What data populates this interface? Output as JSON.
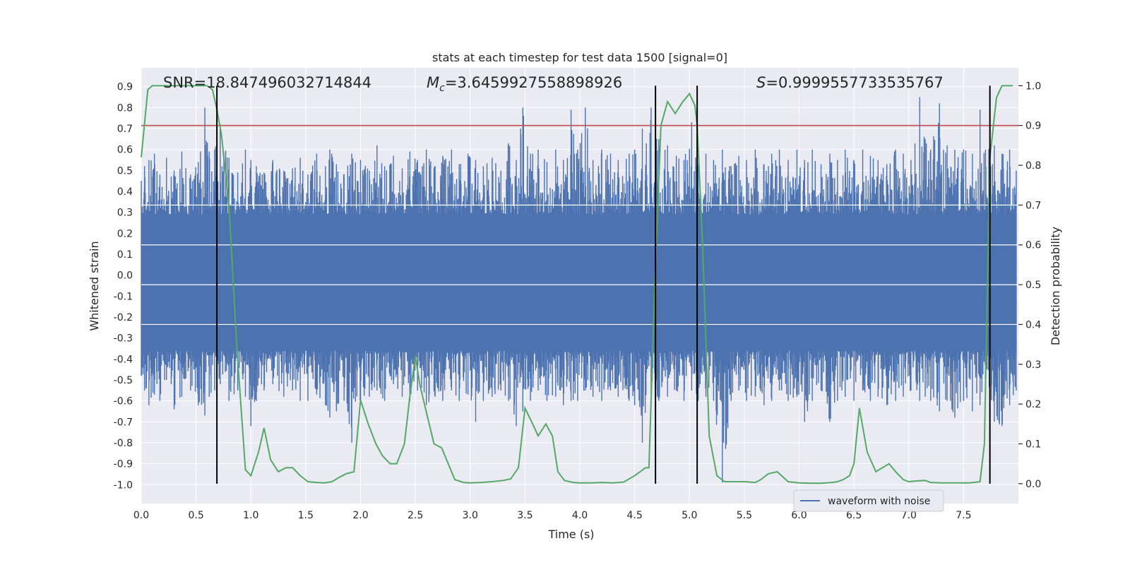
{
  "chart_data": {
    "type": "line",
    "title": "stats at each timestep for test data 1500 [signal=0]",
    "xlabel": "Time (s)",
    "ylabel": "Whitened strain",
    "y2label": "Detection probability",
    "xlim": [
      0,
      8.0
    ],
    "ylim": [
      -1.09,
      0.99
    ],
    "y2lim": [
      -0.05,
      1.045
    ],
    "xticks": [
      "0.0",
      "0.5",
      "1.0",
      "1.5",
      "2.0",
      "2.5",
      "3.0",
      "3.5",
      "4.0",
      "4.5",
      "5.0",
      "5.5",
      "6.0",
      "6.5",
      "7.0",
      "7.5"
    ],
    "yticks": [
      "0.9",
      "0.8",
      "0.7",
      "0.6",
      "0.5",
      "0.4",
      "0.3",
      "0.2",
      "0.1",
      "0.0",
      "-0.1",
      "-0.2",
      "-0.3",
      "-0.4",
      "-0.5",
      "-0.6",
      "-0.7",
      "-0.8",
      "-0.9",
      "-1.0"
    ],
    "y2ticks": [
      "1.0",
      "0.9",
      "0.8",
      "0.7",
      "0.6",
      "0.5",
      "0.4",
      "0.3",
      "0.2",
      "0.1",
      "0.0"
    ],
    "annotations": {
      "snr": "SNR=18.847496032714844",
      "mc_prefix": "M",
      "mc_sub": "c",
      "mc_value": "=3.6459927558898926",
      "s_prefix": "S",
      "s_value": "=0.9999557733535767"
    },
    "threshold": {
      "value": 0.9,
      "axis": "y2",
      "color": "#c44e52"
    },
    "vertical_lines": [
      0.69,
      4.69,
      5.07,
      7.74
    ],
    "legend": {
      "label": "waveform with noise",
      "location": "lower right"
    },
    "colors": {
      "waveform": "#4c72b0",
      "probability": "#55a868",
      "vline": "#000000",
      "background": "#eaeaf2",
      "grid": "#ffffff"
    },
    "series": [
      {
        "name": "waveform with noise",
        "axis": "y",
        "typical_range": [
          -0.36,
          0.29
        ],
        "x": [
          0.0,
          0.03,
          0.07,
          0.12,
          0.17,
          0.23,
          0.3,
          0.37,
          0.45,
          0.52,
          0.58,
          0.62,
          0.67,
          0.72,
          0.8,
          0.88,
          0.95,
          1.0,
          1.05,
          1.12,
          1.2,
          1.3,
          1.38,
          1.45,
          1.52,
          1.6,
          1.68,
          1.72,
          1.78,
          1.85,
          1.92,
          2.0,
          2.08,
          2.15,
          2.22,
          2.3,
          2.38,
          2.45,
          2.52,
          2.6,
          2.68,
          2.75,
          2.83,
          2.9,
          2.98,
          3.05,
          3.12,
          3.2,
          3.28,
          3.35,
          3.42,
          3.48,
          3.55,
          3.62,
          3.7,
          3.78,
          3.85,
          3.92,
          3.98,
          4.05,
          4.12,
          4.2,
          4.28,
          4.35,
          4.45,
          4.5,
          4.57,
          4.65,
          4.72,
          4.8,
          4.88,
          4.95,
          5.02,
          5.08,
          5.15,
          5.22,
          5.3,
          5.38,
          5.45,
          5.52,
          5.6,
          5.68,
          5.75,
          5.82,
          5.9,
          5.98,
          6.05,
          6.12,
          6.2,
          6.28,
          6.35,
          6.42,
          6.5,
          6.58,
          6.65,
          6.72,
          6.8,
          6.88,
          6.95,
          7.02,
          7.1,
          7.15,
          7.2,
          7.28,
          7.35,
          7.42,
          7.5,
          7.58,
          7.65,
          7.7,
          7.78,
          7.85,
          7.92,
          7.98
        ],
        "peaks": [
          0.45,
          0.52,
          0.55,
          0.58,
          0.48,
          0.56,
          0.5,
          0.59,
          0.48,
          0.54,
          0.8,
          0.59,
          0.6,
          0.72,
          0.56,
          0.49,
          0.6,
          0.55,
          0.52,
          0.49,
          0.55,
          0.5,
          0.51,
          0.56,
          0.48,
          0.58,
          0.52,
          0.6,
          0.53,
          0.48,
          0.58,
          0.55,
          0.5,
          0.62,
          0.52,
          0.57,
          0.51,
          0.59,
          0.55,
          0.6,
          0.52,
          0.57,
          0.6,
          0.53,
          0.58,
          0.55,
          0.52,
          0.56,
          0.5,
          0.63,
          0.55,
          0.8,
          0.58,
          0.6,
          0.54,
          0.6,
          0.55,
          0.79,
          0.6,
          0.8,
          0.55,
          0.6,
          0.58,
          0.55,
          0.58,
          0.6,
          0.7,
          0.8,
          0.65,
          0.62,
          0.57,
          0.55,
          0.73,
          0.53,
          0.58,
          0.55,
          0.6,
          0.52,
          0.57,
          0.55,
          0.6,
          0.53,
          0.58,
          0.6,
          0.55,
          0.6,
          0.55,
          0.6,
          0.53,
          0.58,
          0.55,
          0.6,
          0.55,
          0.6,
          0.57,
          0.55,
          0.53,
          0.6,
          0.58,
          0.55,
          0.85,
          0.65,
          0.6,
          0.82,
          0.62,
          0.6,
          0.6,
          0.58,
          0.79,
          0.6,
          0.62,
          0.58,
          0.6,
          0.5
        ],
        "troughs": [
          -0.48,
          -0.55,
          -0.62,
          -0.57,
          -0.6,
          -0.5,
          -0.64,
          -0.58,
          -0.55,
          -0.62,
          -0.67,
          -0.58,
          -0.55,
          -0.52,
          -0.6,
          -0.55,
          -0.58,
          -0.72,
          -0.6,
          -0.55,
          -0.52,
          -0.58,
          -0.55,
          -0.6,
          -0.6,
          -0.57,
          -0.62,
          -0.68,
          -0.65,
          -0.6,
          -0.8,
          -0.6,
          -0.58,
          -0.55,
          -0.6,
          -0.52,
          -0.58,
          -0.6,
          -0.55,
          -0.62,
          -0.58,
          -0.6,
          -0.55,
          -0.6,
          -0.57,
          -0.7,
          -0.6,
          -0.58,
          -0.55,
          -0.6,
          -0.72,
          -0.65,
          -0.6,
          -0.55,
          -0.6,
          -0.58,
          -0.62,
          -0.6,
          -0.6,
          -0.55,
          -0.58,
          -0.6,
          -0.55,
          -0.58,
          -0.6,
          -0.62,
          -0.8,
          -0.6,
          -0.6,
          -0.58,
          -0.55,
          -0.6,
          -0.55,
          -0.6,
          -0.58,
          -0.6,
          -0.99,
          -0.6,
          -0.55,
          -0.6,
          -0.58,
          -0.62,
          -0.6,
          -0.55,
          -0.6,
          -0.58,
          -0.7,
          -0.6,
          -0.55,
          -0.7,
          -0.6,
          -0.58,
          -0.6,
          -0.55,
          -0.6,
          -0.58,
          -0.62,
          -0.6,
          -0.58,
          -0.55,
          -0.6,
          -0.58,
          -0.6,
          -0.65,
          -0.6,
          -0.68,
          -0.6,
          -0.65,
          -0.62,
          -0.6,
          -0.7,
          -0.72,
          -0.62,
          -0.55
        ]
      },
      {
        "name": "detection probability",
        "axis": "y2",
        "x": [
          0.0,
          0.06,
          0.1,
          0.2,
          0.3,
          0.4,
          0.5,
          0.6,
          0.65,
          0.69,
          0.73,
          0.8,
          0.87,
          0.95,
          1.0,
          1.07,
          1.12,
          1.18,
          1.25,
          1.32,
          1.38,
          1.45,
          1.52,
          1.6,
          1.67,
          1.74,
          1.8,
          1.87,
          1.94,
          2.0,
          2.07,
          2.14,
          2.2,
          2.27,
          2.33,
          2.4,
          2.45,
          2.5,
          2.54,
          2.6,
          2.67,
          2.74,
          2.8,
          2.86,
          2.94,
          3.0,
          3.1,
          3.2,
          3.3,
          3.37,
          3.44,
          3.5,
          3.57,
          3.62,
          3.69,
          3.75,
          3.8,
          3.86,
          3.94,
          4.0,
          4.1,
          4.2,
          4.3,
          4.4,
          4.5,
          4.6,
          4.63,
          4.69,
          4.74,
          4.8,
          4.87,
          4.94,
          5.0,
          5.05,
          5.07,
          5.12,
          5.18,
          5.25,
          5.32,
          5.4,
          5.5,
          5.6,
          5.65,
          5.72,
          5.8,
          5.9,
          6.0,
          6.1,
          6.2,
          6.3,
          6.35,
          6.4,
          6.46,
          6.5,
          6.55,
          6.62,
          6.7,
          6.76,
          6.82,
          6.88,
          6.95,
          7.0,
          7.08,
          7.15,
          7.2,
          7.3,
          7.4,
          7.5,
          7.55,
          7.62,
          7.65,
          7.69,
          7.74,
          7.8,
          7.85,
          7.95
        ],
        "values": [
          0.82,
          0.99,
          1.0,
          1.0,
          1.0,
          1.0,
          1.0,
          1.0,
          0.99,
          0.94,
          0.88,
          0.7,
          0.35,
          0.035,
          0.02,
          0.08,
          0.14,
          0.06,
          0.03,
          0.04,
          0.04,
          0.02,
          0.005,
          0.003,
          0.002,
          0.005,
          0.015,
          0.025,
          0.03,
          0.21,
          0.15,
          0.1,
          0.07,
          0.05,
          0.05,
          0.1,
          0.22,
          0.32,
          0.25,
          0.18,
          0.1,
          0.09,
          0.05,
          0.01,
          0.003,
          0.002,
          0.003,
          0.005,
          0.008,
          0.012,
          0.04,
          0.19,
          0.15,
          0.12,
          0.15,
          0.12,
          0.03,
          0.008,
          0.003,
          0.002,
          0.002,
          0.003,
          0.002,
          0.004,
          0.02,
          0.04,
          0.04,
          0.55,
          0.9,
          0.96,
          0.93,
          0.96,
          0.98,
          0.95,
          0.9,
          0.6,
          0.12,
          0.02,
          0.005,
          0.005,
          0.005,
          0.003,
          0.01,
          0.025,
          0.03,
          0.005,
          0.002,
          0.001,
          0.001,
          0.003,
          0.005,
          0.01,
          0.02,
          0.05,
          0.19,
          0.08,
          0.03,
          0.04,
          0.05,
          0.03,
          0.01,
          0.005,
          0.007,
          0.008,
          0.003,
          0.002,
          0.002,
          0.002,
          0.002,
          0.004,
          0.005,
          0.1,
          0.82,
          0.97,
          1.0,
          1.0
        ]
      }
    ]
  }
}
